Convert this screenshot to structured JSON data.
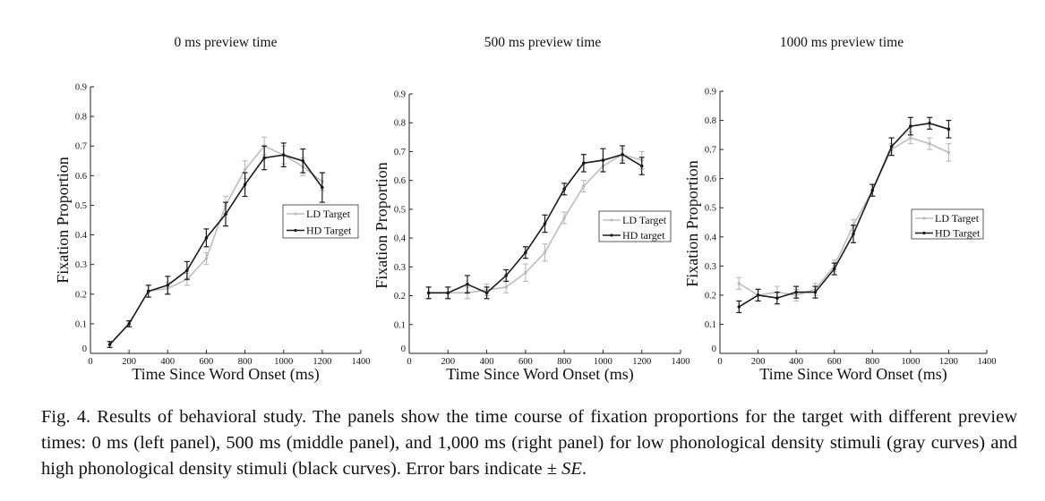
{
  "figure": {
    "caption": {
      "text": "Fig. 4.  Results of behavioral study. The panels show the time course of fixation proportions for the target with different preview times: 0 ms (left panel), 500 ms (middle panel), and 1,000 ms (right panel) for low phonological density stimuli (gray curves) and high phonological density stimuli (black curves). Error bars indicate ±",
      "se": "SE",
      "end": "."
    }
  },
  "chart_data": [
    {
      "type": "line",
      "title": "0 ms preview time",
      "xlabel": "Time Since Word Onset (ms)",
      "ylabel": "Fixation Proportion",
      "xlim": [
        0,
        1400
      ],
      "ylim": [
        0,
        0.9
      ],
      "x_ticks": [
        0,
        200,
        400,
        600,
        800,
        1000,
        1200,
        1400
      ],
      "x_tick_labels": [
        "0",
        "200",
        "400",
        "600",
        "800",
        "1000",
        "1200",
        "1400"
      ],
      "y_ticks": [
        0,
        0.1,
        0.2,
        0.3,
        0.4,
        0.5,
        0.6,
        0.7,
        0.8,
        0.9
      ],
      "y_tick_labels": [
        "0",
        "0.1",
        "0.2",
        "0.3",
        "0.4",
        "0.5",
        "0.6",
        "0.7",
        "0.8",
        "0.9"
      ],
      "legend_position": "right",
      "series": [
        {
          "name": "LD Target",
          "color": "#bdbdbd",
          "x": [
            100,
            200,
            300,
            400,
            500,
            600,
            700,
            800,
            900,
            1000,
            1100,
            1200
          ],
          "values": [
            0.03,
            0.1,
            0.21,
            0.22,
            0.25,
            0.32,
            0.5,
            0.62,
            0.7,
            0.67,
            0.63,
            0.58
          ],
          "errors": [
            0.01,
            0.01,
            0.02,
            0.02,
            0.02,
            0.02,
            0.03,
            0.03,
            0.03,
            0.03,
            0.03,
            0.03
          ]
        },
        {
          "name": "HD Target",
          "color": "#1a1a1a",
          "x": [
            100,
            200,
            300,
            400,
            500,
            600,
            700,
            800,
            900,
            1000,
            1100,
            1200
          ],
          "values": [
            0.03,
            0.1,
            0.21,
            0.23,
            0.28,
            0.39,
            0.47,
            0.57,
            0.66,
            0.67,
            0.65,
            0.56
          ],
          "errors": [
            0.01,
            0.01,
            0.02,
            0.03,
            0.03,
            0.03,
            0.04,
            0.04,
            0.04,
            0.04,
            0.04,
            0.05
          ]
        }
      ]
    },
    {
      "type": "line",
      "title": "500 ms preview time",
      "xlabel": "Time Since Word Onset (ms)",
      "ylabel": "Fixation Proportion",
      "xlim": [
        0,
        1400
      ],
      "ylim": [
        0,
        0.9
      ],
      "x_ticks": [
        0,
        200,
        400,
        600,
        800,
        1000,
        1200,
        1400
      ],
      "x_tick_labels": [
        "0",
        "200",
        "400",
        "600",
        "800",
        "1000",
        "1200",
        "1400"
      ],
      "y_ticks": [
        0,
        0.1,
        0.2,
        0.3,
        0.4,
        0.5,
        0.6,
        0.7,
        0.8,
        0.9
      ],
      "y_tick_labels": [
        "0",
        "0.1",
        "0.2",
        "0.3",
        "0.4",
        "0.5",
        "0.6",
        "0.7",
        "0.8",
        "0.9"
      ],
      "legend_position": "right",
      "series": [
        {
          "name": "LD Target",
          "color": "#bdbdbd",
          "x": [
            100,
            200,
            300,
            400,
            500,
            600,
            700,
            800,
            900,
            1000,
            1100,
            1200
          ],
          "values": [
            0.21,
            0.21,
            0.21,
            0.22,
            0.23,
            0.28,
            0.35,
            0.47,
            0.58,
            0.65,
            0.69,
            0.67
          ],
          "errors": [
            0.02,
            0.02,
            0.02,
            0.02,
            0.02,
            0.03,
            0.03,
            0.02,
            0.02,
            0.02,
            0.02,
            0.03
          ]
        },
        {
          "name": "HD target",
          "color": "#1a1a1a",
          "x": [
            100,
            200,
            300,
            400,
            500,
            600,
            700,
            800,
            900,
            1000,
            1100,
            1200
          ],
          "values": [
            0.21,
            0.21,
            0.24,
            0.21,
            0.27,
            0.35,
            0.45,
            0.57,
            0.66,
            0.67,
            0.69,
            0.65
          ],
          "errors": [
            0.02,
            0.02,
            0.03,
            0.02,
            0.02,
            0.02,
            0.03,
            0.02,
            0.03,
            0.04,
            0.03,
            0.03
          ]
        }
      ]
    },
    {
      "type": "line",
      "title": "1000 ms preview time",
      "xlabel": "Time Since Word Onset (ms)",
      "ylabel": "Fixation Proportion",
      "xlim": [
        0,
        1400
      ],
      "ylim": [
        0,
        0.9
      ],
      "x_ticks": [
        0,
        200,
        400,
        600,
        800,
        1000,
        1200,
        1400
      ],
      "x_tick_labels": [
        "0",
        "200",
        "400",
        "600",
        "800",
        "1000",
        "1200",
        "1400"
      ],
      "y_ticks": [
        0,
        0.1,
        0.2,
        0.3,
        0.4,
        0.5,
        0.6,
        0.7,
        0.8,
        0.9
      ],
      "y_tick_labels": [
        "0",
        "0.1",
        "0.2",
        "0.3",
        "0.4",
        "0.5",
        "0.6",
        "0.7",
        "0.8",
        "0.9"
      ],
      "legend_position": "right",
      "series": [
        {
          "name": "LD Target",
          "color": "#bdbdbd",
          "x": [
            100,
            200,
            300,
            400,
            500,
            600,
            700,
            800,
            900,
            1000,
            1100,
            1200
          ],
          "values": [
            0.24,
            0.2,
            0.21,
            0.2,
            0.22,
            0.3,
            0.44,
            0.56,
            0.7,
            0.74,
            0.72,
            0.69
          ],
          "errors": [
            0.02,
            0.02,
            0.02,
            0.02,
            0.02,
            0.02,
            0.02,
            0.02,
            0.02,
            0.02,
            0.02,
            0.03
          ]
        },
        {
          "name": "HD Target",
          "color": "#1a1a1a",
          "x": [
            100,
            200,
            300,
            400,
            500,
            600,
            700,
            800,
            900,
            1000,
            1100,
            1200
          ],
          "values": [
            0.16,
            0.2,
            0.19,
            0.21,
            0.21,
            0.29,
            0.41,
            0.56,
            0.71,
            0.78,
            0.79,
            0.77
          ],
          "errors": [
            0.02,
            0.02,
            0.02,
            0.02,
            0.02,
            0.02,
            0.03,
            0.02,
            0.03,
            0.03,
            0.02,
            0.03
          ]
        }
      ]
    }
  ]
}
